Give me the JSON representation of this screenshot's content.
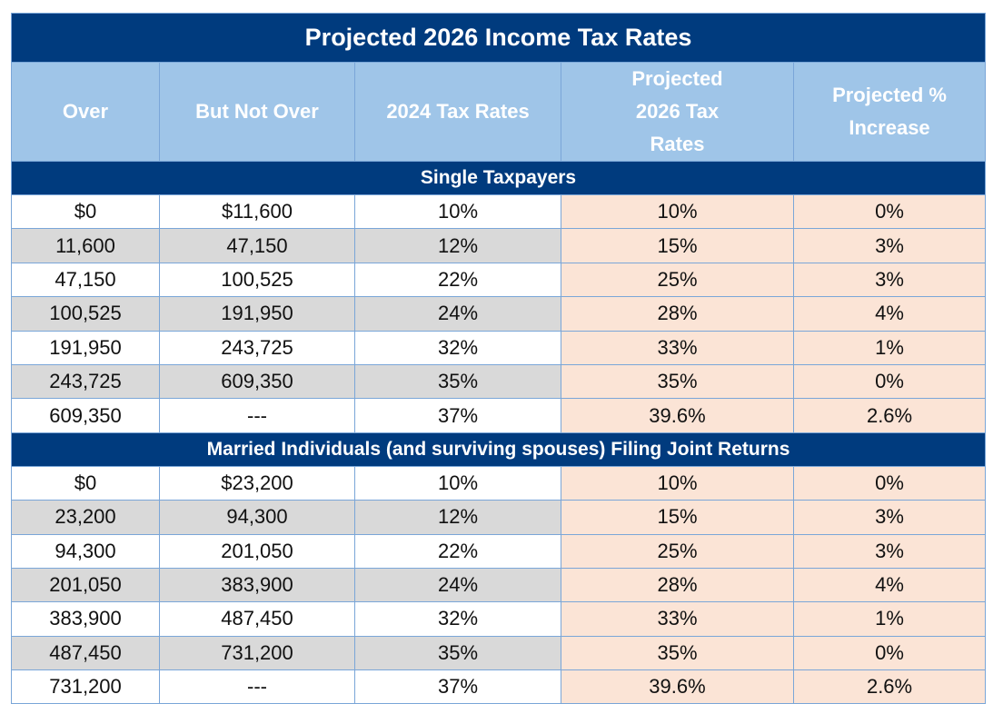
{
  "title": "Projected 2026 Income Tax Rates",
  "headers": [
    "Over",
    "But Not Over",
    "2024 Tax Rates",
    "Projected 2026 Tax Rates",
    "Projected % Increase"
  ],
  "colors": {
    "title_bg": "#003b7e",
    "header_bg": "#9fc5e8",
    "alt_row": "#d9d9d9",
    "projected_bg": "#fbe4d6"
  },
  "sections": [
    {
      "label": "Single Taxpayers",
      "rows": [
        [
          "$0",
          "$11,600",
          "10%",
          "10%",
          "0%"
        ],
        [
          "11,600",
          "47,150",
          "12%",
          "15%",
          "3%"
        ],
        [
          "47,150",
          "100,525",
          "22%",
          "25%",
          "3%"
        ],
        [
          "100,525",
          "191,950",
          "24%",
          "28%",
          "4%"
        ],
        [
          "191,950",
          "243,725",
          "32%",
          "33%",
          "1%"
        ],
        [
          "243,725",
          "609,350",
          "35%",
          "35%",
          "0%"
        ],
        [
          "609,350",
          "---",
          "37%",
          "39.6%",
          "2.6%"
        ]
      ]
    },
    {
      "label": "Married Individuals (and surviving spouses) Filing Joint Returns",
      "rows": [
        [
          "$0",
          "$23,200",
          "10%",
          "10%",
          "0%"
        ],
        [
          "23,200",
          "94,300",
          "12%",
          "15%",
          "3%"
        ],
        [
          "94,300",
          "201,050",
          "22%",
          "25%",
          "3%"
        ],
        [
          "201,050",
          "383,900",
          "24%",
          "28%",
          "4%"
        ],
        [
          "383,900",
          "487,450",
          "32%",
          "33%",
          "1%"
        ],
        [
          "487,450",
          "731,200",
          "35%",
          "35%",
          "0%"
        ],
        [
          "731,200",
          "---",
          "37%",
          "39.6%",
          "2.6%"
        ]
      ]
    }
  ]
}
